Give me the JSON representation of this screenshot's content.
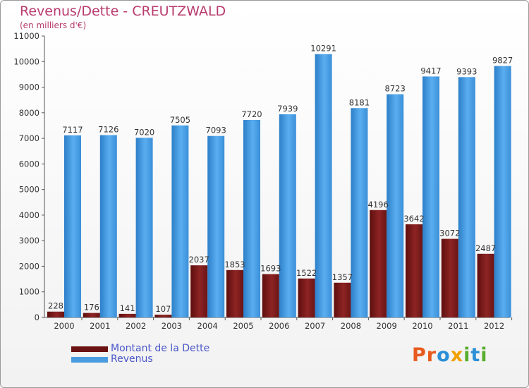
{
  "title": "Revenus/Dette - CREUTZWALD",
  "subtitle": "(en milliers d'€)",
  "logo": {
    "text": "Proxiti",
    "letters": [
      {
        "ch": "P",
        "color": "#e85a1e"
      },
      {
        "ch": "r",
        "color": "#e85a1e"
      },
      {
        "ch": "o",
        "color": "#2a8fd6"
      },
      {
        "ch": "x",
        "color": "#f0a000"
      },
      {
        "ch": "i",
        "color": "#5aae2e"
      },
      {
        "ch": "t",
        "color": "#2a8fd6"
      },
      {
        "ch": "i",
        "color": "#5aae2e"
      }
    ]
  },
  "chart_data": {
    "type": "bar",
    "title": "Revenus/Dette - CREUTZWALD",
    "subtitle": "(en milliers d'€)",
    "xlabel": "",
    "ylabel": "",
    "categories": [
      "2000",
      "2001",
      "2002",
      "2003",
      "2004",
      "2005",
      "2006",
      "2007",
      "2008",
      "2009",
      "2010",
      "2011",
      "2012"
    ],
    "series": [
      {
        "name": "Montant de la Dette",
        "color": "#7a1c1c",
        "values": [
          228,
          176,
          141,
          107,
          2037,
          1853,
          1693,
          1522,
          1357,
          4196,
          3642,
          3072,
          2487
        ],
        "labels": [
          "228",
          "176",
          "141",
          "107",
          "2037",
          "1853",
          "1693",
          "1522",
          "1357",
          "4196",
          "3642",
          "3072",
          "2487"
        ]
      },
      {
        "name": "Revenus",
        "color": "#3b93dc",
        "values": [
          7117,
          7126,
          7020,
          7505,
          7093,
          7720,
          7939,
          10291,
          8181,
          8723,
          9417,
          9393,
          9827
        ],
        "labels": [
          "7117",
          "7126",
          "7020",
          "7505",
          "7093",
          "7720",
          "7939",
          "10291",
          "8181",
          "8723",
          "9417",
          "9393",
          "9827"
        ]
      }
    ],
    "ylim": [
      0,
      11000
    ],
    "yticks": [
      "0",
      "1000",
      "2000",
      "3000",
      "4000",
      "5000",
      "6000",
      "7000",
      "8000",
      "9000",
      "10000",
      "11000"
    ],
    "grid": false,
    "legend": "bottom-left"
  }
}
